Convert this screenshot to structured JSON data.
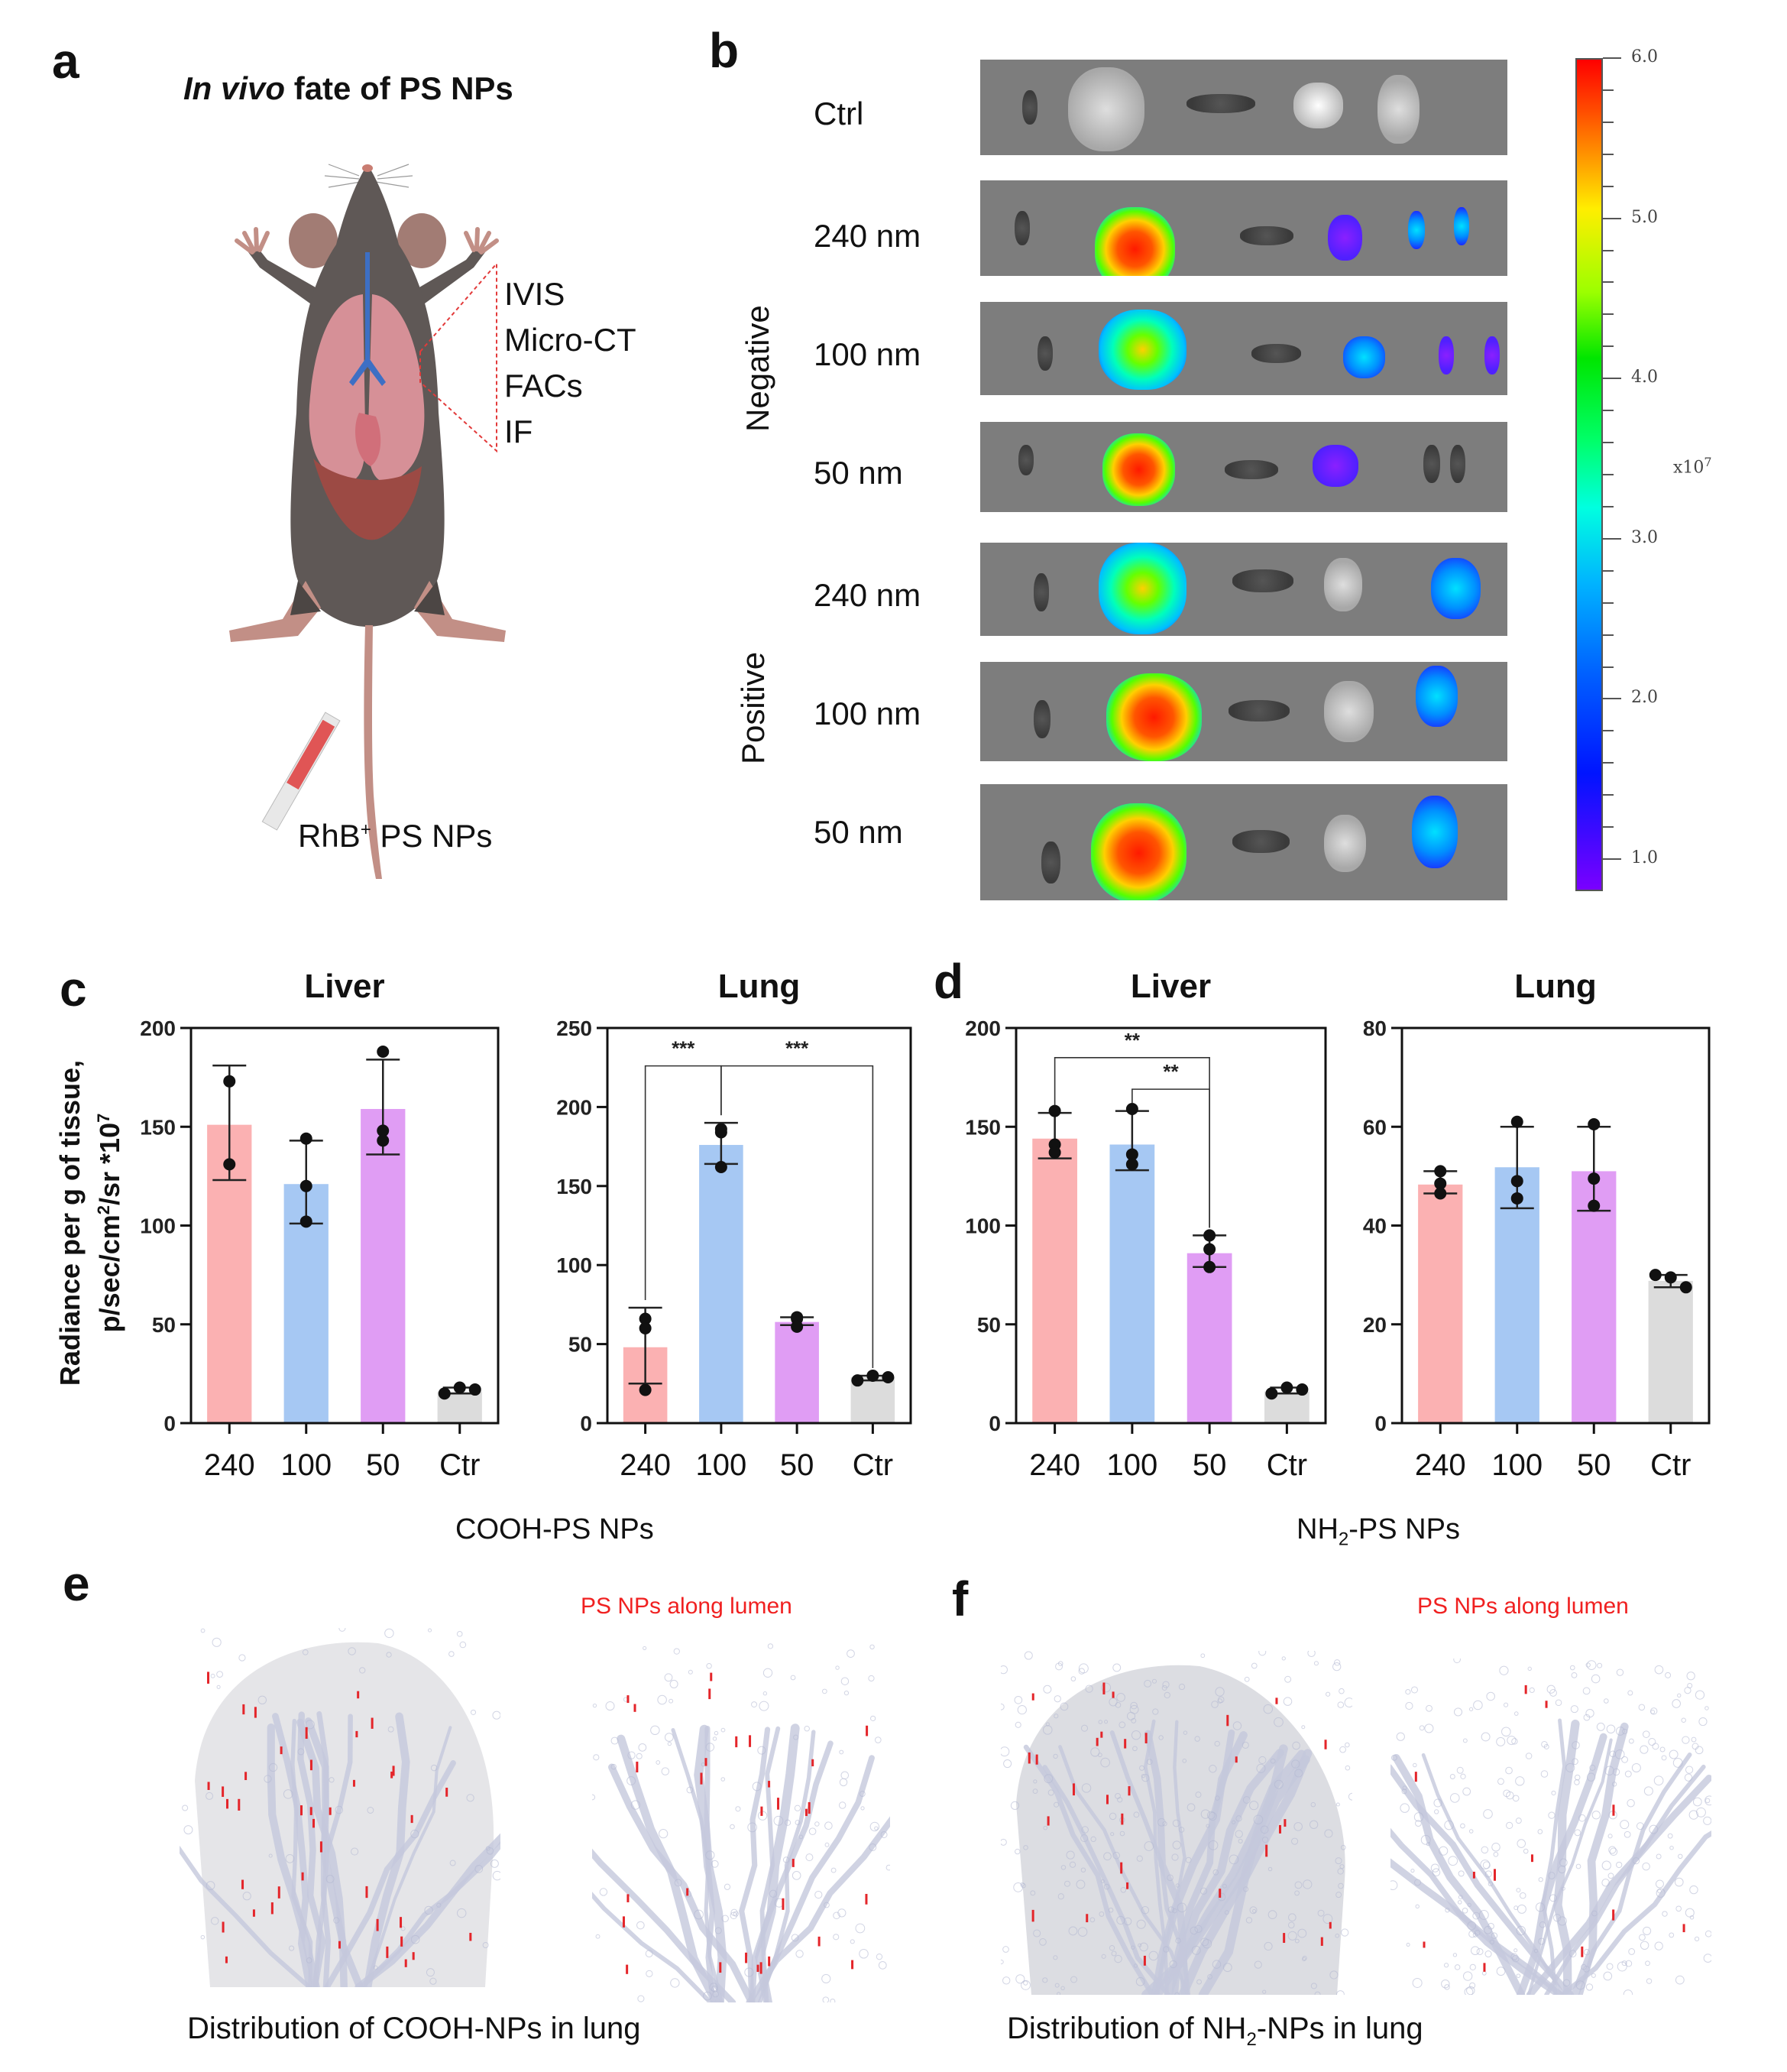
{
  "panels": {
    "a": {
      "letter": "a",
      "title_italic": "In vivo",
      "title_rest": " fate of PS NPs",
      "methods": [
        "IVIS",
        "Micro-CT",
        "FACs",
        "IF"
      ],
      "injection_label_main": "RhB",
      "injection_label_sup": "+",
      "injection_label_rest": " PS NPs",
      "colors": {
        "mouse_body": "#5f5856",
        "mouse_skin": "#c28f86",
        "lung": "#d9939a",
        "liver": "#9c4a44",
        "trachea": "#3d6fc4",
        "bracket": "#e23a3a",
        "syringe_fluid": "#e05555"
      }
    },
    "b": {
      "letter": "b",
      "groups": [
        "Negative",
        "Positive"
      ],
      "rows": [
        {
          "label": "Ctrl",
          "group": ""
        },
        {
          "label": "240 nm",
          "group": "Negative"
        },
        {
          "label": "100 nm",
          "group": "Negative"
        },
        {
          "label": "50 nm",
          "group": "Negative"
        },
        {
          "label": "240 nm",
          "group": "Positive"
        },
        {
          "label": "100 nm",
          "group": "Positive"
        },
        {
          "label": "50 nm",
          "group": "Positive"
        }
      ],
      "colorbar": {
        "ticks": [
          "6.0",
          "5.0",
          "4.0",
          "3.0",
          "2.0",
          "1.0"
        ],
        "unit_base": "x10",
        "unit_exp": "7",
        "range": [
          0.8,
          6.0
        ]
      }
    },
    "c": {
      "letter": "c",
      "group_label": "COOH-PS NPs"
    },
    "d": {
      "letter": "d",
      "group_label_main": "NH",
      "group_label_sub": "2",
      "group_label_rest": "-PS NPs"
    },
    "e": {
      "letter": "e",
      "annotation": "PS NPs along lumen",
      "caption": "Distribution of COOH-NPs  in lung"
    },
    "f": {
      "letter": "f",
      "annotation": "PS NPs along lumen",
      "caption_main": "Distribution of NH",
      "caption_sub": "2",
      "caption_rest": "-NPs  in lung"
    }
  },
  "ylabel": {
    "line1": "Radiance per g of tissue,",
    "line2_main": "p/sec/cm",
    "line2_sup1": "2",
    "line2_mid": "/sr *10",
    "line2_sup2": "7"
  },
  "chart_data": [
    {
      "id": "c-liver",
      "type": "bar",
      "title": "Liver",
      "panel": "c",
      "categories": [
        "240",
        "100",
        "50",
        "Ctr"
      ],
      "values": [
        151,
        121,
        159,
        16
      ],
      "error_low": [
        123,
        101,
        136,
        15
      ],
      "error_high": [
        181,
        143,
        184,
        18
      ],
      "points": [
        [
          173,
          131
        ],
        [
          144,
          120,
          102
        ],
        [
          188,
          148,
          143
        ],
        [
          15,
          18,
          17
        ]
      ],
      "colors": [
        "#fbb1b2",
        "#a6c8f3",
        "#e09df4",
        "#dcdcdc"
      ],
      "ylim": [
        0,
        200
      ],
      "yticks": [
        0,
        50,
        100,
        150,
        200
      ],
      "ylabel": "Radiance per g of tissue, p/sec/cm2/sr *10^7",
      "xlabel": "COOH-PS NPs",
      "significance": []
    },
    {
      "id": "c-lung",
      "type": "bar",
      "title": "Lung",
      "panel": "c",
      "categories": [
        "240",
        "100",
        "50",
        "Ctr"
      ],
      "values": [
        48,
        176,
        64,
        29
      ],
      "error_low": [
        25,
        164,
        62,
        27
      ],
      "error_high": [
        73,
        190,
        67,
        30
      ],
      "points": [
        [
          66,
          60,
          21
        ],
        [
          186,
          184,
          162
        ],
        [
          67,
          66,
          61
        ],
        [
          27,
          30,
          29
        ]
      ],
      "colors": [
        "#fbb1b2",
        "#a6c8f3",
        "#e09df4",
        "#dcdcdc"
      ],
      "ylim": [
        0,
        250
      ],
      "yticks": [
        0,
        50,
        100,
        150,
        200,
        250
      ],
      "xlabel": "COOH-PS NPs",
      "significance": [
        {
          "from": 0,
          "to": 1,
          "label": "***",
          "y": 226
        },
        {
          "from": 1,
          "to": 3,
          "label": "***",
          "y": 226
        }
      ]
    },
    {
      "id": "d-liver",
      "type": "bar",
      "title": "Liver",
      "panel": "d",
      "categories": [
        "240",
        "100",
        "50",
        "Ctr"
      ],
      "values": [
        144,
        141,
        86,
        16
      ],
      "error_low": [
        134,
        128,
        79,
        15
      ],
      "error_high": [
        157,
        158,
        95,
        18
      ],
      "points": [
        [
          158,
          141,
          137
        ],
        [
          159,
          136,
          131
        ],
        [
          95,
          88,
          79
        ],
        [
          15,
          18,
          17
        ]
      ],
      "colors": [
        "#fbb1b2",
        "#a6c8f3",
        "#e09df4",
        "#dcdcdc"
      ],
      "ylim": [
        0,
        200
      ],
      "yticks": [
        0,
        50,
        100,
        150,
        200
      ],
      "xlabel": "NH2-PS NPs",
      "significance": [
        {
          "from": 0,
          "to": 2,
          "label": "**",
          "y": 185
        },
        {
          "from": 1,
          "to": 2,
          "label": "**",
          "y": 169
        }
      ]
    },
    {
      "id": "d-lung",
      "type": "bar",
      "title": "Lung",
      "panel": "d",
      "categories": [
        "240",
        "100",
        "50",
        "Ctr"
      ],
      "values": [
        48.3,
        51.8,
        51,
        28.8
      ],
      "error_low": [
        46.5,
        43.5,
        43,
        27.5
      ],
      "error_high": [
        51,
        60,
        60,
        30
      ],
      "points": [
        [
          51,
          48.5,
          46.5
        ],
        [
          61,
          49,
          45.5
        ],
        [
          60.5,
          49.5,
          44
        ],
        [
          30,
          29.5,
          27.5
        ]
      ],
      "colors": [
        "#fbb1b2",
        "#a6c8f3",
        "#e09df4",
        "#dcdcdc"
      ],
      "ylim": [
        0,
        80
      ],
      "yticks": [
        0,
        20,
        40,
        60,
        80
      ],
      "xlabel": "NH2-PS NPs",
      "significance": []
    }
  ]
}
